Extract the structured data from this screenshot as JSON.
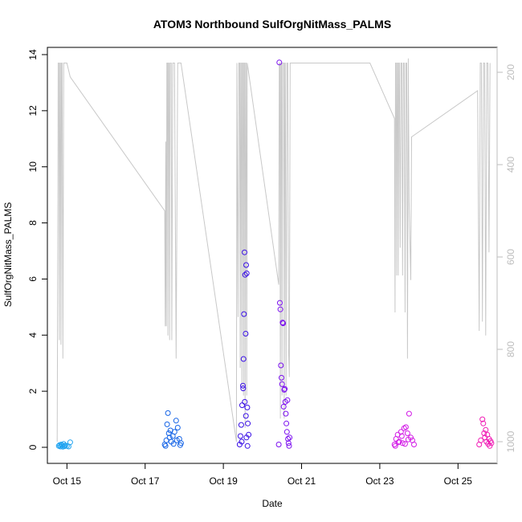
{
  "chart_data": {
    "type": "scatter",
    "title": "ATOM3 Northbound SulfOrgNitMass_PALMS",
    "xlabel": "Date",
    "ylabel": "SulfOrgNitMass_PALMS",
    "x_range_days": [
      "Oct 14 12:00",
      "Oct 26 00:00"
    ],
    "x_ticks": [
      {
        "date": "Oct 15",
        "label": "Oct 15"
      },
      {
        "date": "Oct 17",
        "label": "Oct 17"
      },
      {
        "date": "Oct 19",
        "label": "Oct 19"
      },
      {
        "date": "Oct 21",
        "label": "Oct 21"
      },
      {
        "date": "Oct 23",
        "label": "Oct 23"
      },
      {
        "date": "Oct 25",
        "label": "Oct 25"
      }
    ],
    "ylim": [
      0,
      14
    ],
    "y_ticks": [
      0,
      2,
      4,
      6,
      8,
      10,
      12,
      14
    ],
    "y2_ticks": [
      200,
      400,
      600,
      800,
      1000
    ],
    "y2_range": [
      1000,
      180
    ],
    "y2_color": "#bdbdbd",
    "grid": false,
    "series": [
      {
        "color": "#1fa3f0",
        "points": [
          [
            "Oct 14 19:00",
            0.05
          ],
          [
            "Oct 14 19:30",
            0.08
          ],
          [
            "Oct 14 20:00",
            0.03
          ],
          [
            "Oct 14 20:30",
            0.1
          ],
          [
            "Oct 14 21:00",
            0.06
          ],
          [
            "Oct 14 21:30",
            0.02
          ],
          [
            "Oct 14 22:00",
            0.12
          ],
          [
            "Oct 14 22:30",
            0.04
          ],
          [
            "Oct 14 23:00",
            0.07
          ],
          [
            "Oct 15 00:00",
            0.05
          ],
          [
            "Oct 15 01:00",
            0.03
          ],
          [
            "Oct 15 02:00",
            0.18
          ]
        ]
      },
      {
        "color": "#1463e6",
        "points": [
          [
            "Oct 17 12:00",
            0.1
          ],
          [
            "Oct 17 13:00",
            0.25
          ],
          [
            "Oct 17 13:30",
            0.82
          ],
          [
            "Oct 17 14:00",
            1.22
          ],
          [
            "Oct 17 14:30",
            0.5
          ],
          [
            "Oct 17 15:00",
            0.35
          ],
          [
            "Oct 17 16:00",
            0.2
          ],
          [
            "Oct 17 17:00",
            0.4
          ],
          [
            "Oct 17 18:00",
            0.55
          ],
          [
            "Oct 17 19:00",
            0.95
          ],
          [
            "Oct 17 20:00",
            0.7
          ],
          [
            "Oct 17 21:00",
            0.3
          ],
          [
            "Oct 17 22:00",
            0.15
          ],
          [
            "Oct 17 12:30",
            0.05
          ],
          [
            "Oct 17 15:30",
            0.6
          ],
          [
            "Oct 17 17:30",
            0.12
          ],
          [
            "Oct 17 19:30",
            0.25
          ],
          [
            "Oct 17 21:30",
            0.08
          ]
        ]
      },
      {
        "color": "#3a10e6",
        "points": [
          [
            "Oct 19 10:00",
            0.1
          ],
          [
            "Oct 19 10:30",
            0.4
          ],
          [
            "Oct 19 11:00",
            0.8
          ],
          [
            "Oct 19 11:30",
            1.5
          ],
          [
            "Oct 19 12:00",
            2.2
          ],
          [
            "Oct 19 12:20",
            3.15
          ],
          [
            "Oct 19 12:40",
            4.75
          ],
          [
            "Oct 19 13:00",
            6.95
          ],
          [
            "Oct 19 13:20",
            6.15
          ],
          [
            "Oct 19 13:40",
            4.05
          ],
          [
            "Oct 19 14:00",
            6.5
          ],
          [
            "Oct 19 14:20",
            6.2
          ],
          [
            "Oct 19 14:40",
            1.42
          ],
          [
            "Oct 19 15:00",
            0.85
          ],
          [
            "Oct 19 15:30",
            0.45
          ],
          [
            "Oct 19 12:10",
            2.1
          ],
          [
            "Oct 19 13:10",
            1.62
          ],
          [
            "Oct 19 13:50",
            1.12
          ],
          [
            "Oct 19 14:10",
            0.35
          ],
          [
            "Oct 19 11:15",
            0.2
          ],
          [
            "Oct 19 14:50",
            0.05
          ]
        ]
      },
      {
        "color": "#7c10f0",
        "points": [
          [
            "Oct 20 10:00",
            0.1
          ],
          [
            "Oct 20 10:20",
            13.72
          ],
          [
            "Oct 20 10:40",
            5.15
          ],
          [
            "Oct 20 11:00",
            4.92
          ],
          [
            "Oct 20 11:20",
            2.92
          ],
          [
            "Oct 20 11:40",
            2.48
          ],
          [
            "Oct 20 12:00",
            2.25
          ],
          [
            "Oct 20 12:20",
            4.45
          ],
          [
            "Oct 20 12:40",
            4.42
          ],
          [
            "Oct 20 13:00",
            1.45
          ],
          [
            "Oct 20 13:20",
            2.05
          ],
          [
            "Oct 20 13:40",
            2.08
          ],
          [
            "Oct 20 14:00",
            1.62
          ],
          [
            "Oct 20 14:20",
            1.2
          ],
          [
            "Oct 20 14:40",
            0.85
          ],
          [
            "Oct 20 15:00",
            0.55
          ],
          [
            "Oct 20 15:20",
            1.68
          ],
          [
            "Oct 20 15:40",
            0.3
          ],
          [
            "Oct 20 16:00",
            0.15
          ],
          [
            "Oct 20 16:20",
            0.05
          ],
          [
            "Oct 20 16:40",
            0.35
          ]
        ]
      },
      {
        "color": "#d21ae6",
        "points": [
          [
            "Oct 23 09:00",
            0.1
          ],
          [
            "Oct 23 10:00",
            0.3
          ],
          [
            "Oct 23 11:00",
            0.45
          ],
          [
            "Oct 23 12:00",
            0.2
          ],
          [
            "Oct 23 13:00",
            0.55
          ],
          [
            "Oct 23 14:00",
            0.15
          ],
          [
            "Oct 23 15:00",
            0.68
          ],
          [
            "Oct 23 16:00",
            0.72
          ],
          [
            "Oct 23 17:00",
            0.5
          ],
          [
            "Oct 23 18:00",
            1.2
          ],
          [
            "Oct 23 19:00",
            0.35
          ],
          [
            "Oct 23 20:00",
            0.25
          ],
          [
            "Oct 23 21:00",
            0.1
          ],
          [
            "Oct 23 09:30",
            0.05
          ],
          [
            "Oct 23 11:30",
            0.18
          ],
          [
            "Oct 23 13:30",
            0.4
          ],
          [
            "Oct 23 15:30",
            0.12
          ],
          [
            "Oct 23 17:30",
            0.28
          ]
        ]
      },
      {
        "color": "#f01ab4",
        "points": [
          [
            "Oct 25 13:00",
            0.1
          ],
          [
            "Oct 25 14:00",
            0.25
          ],
          [
            "Oct 25 15:00",
            1.0
          ],
          [
            "Oct 25 15:30",
            0.85
          ],
          [
            "Oct 25 16:00",
            0.5
          ],
          [
            "Oct 25 16:30",
            0.35
          ],
          [
            "Oct 25 17:00",
            0.62
          ],
          [
            "Oct 25 17:30",
            0.2
          ],
          [
            "Oct 25 18:00",
            0.45
          ],
          [
            "Oct 25 18:30",
            0.12
          ],
          [
            "Oct 25 19:00",
            0.3
          ],
          [
            "Oct 25 19:30",
            0.05
          ],
          [
            "Oct 25 20:00",
            0.22
          ],
          [
            "Oct 25 20:30",
            0.15
          ]
        ]
      }
    ],
    "pressure_trace": {
      "color": "#c8c8c8",
      "axis": "right",
      "points": [
        [
          "Oct 14 18:00",
          1000
        ],
        [
          "Oct 14 18:20",
          600
        ],
        [
          "Oct 14 18:40",
          180
        ],
        [
          "Oct 14 19:00",
          180
        ],
        [
          "Oct 14 19:20",
          780
        ],
        [
          "Oct 14 19:40",
          180
        ],
        [
          "Oct 14 20:00",
          180
        ],
        [
          "Oct 14 20:20",
          790
        ],
        [
          "Oct 14 20:40",
          180
        ],
        [
          "Oct 14 21:00",
          180
        ],
        [
          "Oct 14 21:30",
          820
        ],
        [
          "Oct 14 22:00",
          180
        ],
        [
          "Oct 15 00:00",
          180
        ],
        [
          "Oct 15 02:00",
          210
        ],
        [
          "Oct 17 12:00",
          500
        ],
        [
          "Oct 17 12:20",
          750
        ],
        [
          "Oct 17 12:40",
          350
        ],
        [
          "Oct 17 13:00",
          750
        ],
        [
          "Oct 17 13:20",
          180
        ],
        [
          "Oct 17 13:40",
          180
        ],
        [
          "Oct 17 14:00",
          770
        ],
        [
          "Oct 17 14:20",
          180
        ],
        [
          "Oct 17 14:40",
          180
        ],
        [
          "Oct 17 15:00",
          780
        ],
        [
          "Oct 17 15:20",
          180
        ],
        [
          "Oct 17 16:00",
          180
        ],
        [
          "Oct 17 16:20",
          780
        ],
        [
          "Oct 17 17:00",
          180
        ],
        [
          "Oct 17 18:00",
          180
        ],
        [
          "Oct 17 19:00",
          820
        ],
        [
          "Oct 17 20:00",
          180
        ],
        [
          "Oct 17 22:00",
          180
        ],
        [
          "Oct 19 08:00",
          1000
        ],
        [
          "Oct 19 08:20",
          180
        ],
        [
          "Oct 19 09:00",
          730
        ],
        [
          "Oct 19 09:30",
          180
        ],
        [
          "Oct 19 10:00",
          180
        ],
        [
          "Oct 19 10:20",
          840
        ],
        [
          "Oct 19 10:40",
          180
        ],
        [
          "Oct 19 11:00",
          180
        ],
        [
          "Oct 19 11:20",
          880
        ],
        [
          "Oct 19 11:40",
          180
        ],
        [
          "Oct 19 12:00",
          180
        ],
        [
          "Oct 19 12:20",
          900
        ],
        [
          "Oct 19 12:40",
          180
        ],
        [
          "Oct 19 13:00",
          180
        ],
        [
          "Oct 19 13:20",
          970
        ],
        [
          "Oct 19 13:40",
          180
        ],
        [
          "Oct 19 14:00",
          180
        ],
        [
          "Oct 19 14:20",
          900
        ],
        [
          "Oct 19 14:40",
          180
        ],
        [
          "Oct 20 10:00",
          660
        ],
        [
          "Oct 20 10:20",
          180
        ],
        [
          "Oct 20 10:40",
          180
        ],
        [
          "Oct 20 11:00",
          950
        ],
        [
          "Oct 20 11:20",
          180
        ],
        [
          "Oct 20 11:40",
          180
        ],
        [
          "Oct 20 12:00",
          900
        ],
        [
          "Oct 20 12:20",
          180
        ],
        [
          "Oct 20 13:00",
          180
        ],
        [
          "Oct 20 13:20",
          950
        ],
        [
          "Oct 20 13:40",
          180
        ],
        [
          "Oct 20 14:00",
          180
        ],
        [
          "Oct 20 14:30",
          900
        ],
        [
          "Oct 20 15:00",
          180
        ],
        [
          "Oct 20 15:30",
          180
        ],
        [
          "Oct 20 16:00",
          800
        ],
        [
          "Oct 20 16:30",
          860
        ],
        [
          "Oct 20 17:00",
          180
        ],
        [
          "Oct 22 18:00",
          180
        ],
        [
          "Oct 23 09:00",
          300
        ],
        [
          "Oct 23 09:20",
          720
        ],
        [
          "Oct 23 09:40",
          180
        ],
        [
          "Oct 23 10:00",
          180
        ],
        [
          "Oct 23 10:20",
          640
        ],
        [
          "Oct 23 10:40",
          180
        ],
        [
          "Oct 23 11:00",
          180
        ],
        [
          "Oct 23 11:20",
          640
        ],
        [
          "Oct 23 11:40",
          180
        ],
        [
          "Oct 23 12:00",
          180
        ],
        [
          "Oct 23 12:30",
          580
        ],
        [
          "Oct 23 13:00",
          180
        ],
        [
          "Oct 23 13:30",
          180
        ],
        [
          "Oct 23 14:00",
          640
        ],
        [
          "Oct 23 14:30",
          180
        ],
        [
          "Oct 23 15:00",
          180
        ],
        [
          "Oct 23 15:30",
          720
        ],
        [
          "Oct 23 16:00",
          180
        ],
        [
          "Oct 23 16:30",
          180
        ],
        [
          "Oct 23 17:00",
          820
        ],
        [
          "Oct 23 17:30",
          170
        ],
        [
          "Oct 23 18:00",
          480
        ],
        [
          "Oct 23 19:00",
          650
        ],
        [
          "Oct 23 19:30",
          340
        ],
        [
          "Oct 25 12:00",
          240
        ],
        [
          "Oct 25 13:00",
          760
        ],
        [
          "Oct 25 13:40",
          180
        ],
        [
          "Oct 25 14:20",
          180
        ],
        [
          "Oct 25 15:00",
          740
        ],
        [
          "Oct 25 15:40",
          180
        ],
        [
          "Oct 25 16:20",
          180
        ],
        [
          "Oct 25 17:00",
          770
        ],
        [
          "Oct 25 17:40",
          180
        ],
        [
          "Oct 25 18:20",
          180
        ],
        [
          "Oct 25 19:00",
          590
        ],
        [
          "Oct 25 19:40",
          180
        ]
      ]
    }
  }
}
